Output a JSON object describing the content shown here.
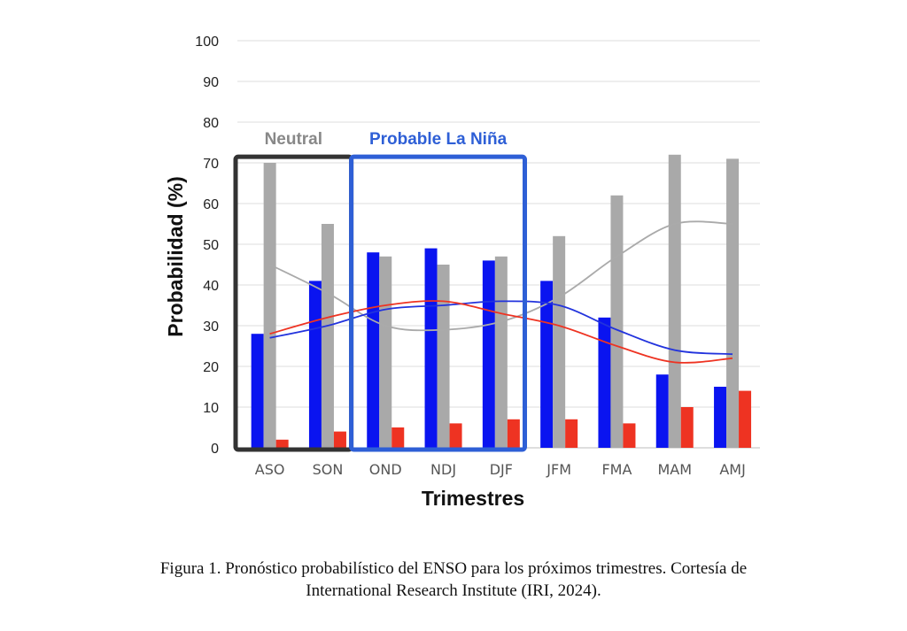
{
  "chart_data": {
    "type": "bar",
    "categories": [
      "ASO",
      "SON",
      "OND",
      "NDJ",
      "DJF",
      "JFM",
      "FMA",
      "MAM",
      "AMJ"
    ],
    "series": [
      {
        "color": "#0a14f0",
        "values": [
          28,
          41,
          48,
          49,
          46,
          41,
          32,
          18,
          15
        ]
      },
      {
        "color": "#a9a9a9",
        "values": [
          70,
          55,
          47,
          45,
          47,
          52,
          62,
          72,
          71
        ]
      },
      {
        "color": "#ee3322",
        "values": [
          2,
          4,
          5,
          6,
          7,
          7,
          6,
          10,
          14
        ]
      }
    ],
    "lines": [
      {
        "color": "#aaaaaa",
        "values": [
          45,
          38,
          30,
          29,
          31,
          37,
          47,
          55,
          55
        ]
      },
      {
        "color": "#2233dd",
        "values": [
          27,
          30,
          34,
          35,
          36,
          35,
          29,
          24,
          23
        ]
      },
      {
        "color": "#ee3322",
        "values": [
          28,
          32,
          35,
          36,
          33,
          30,
          25,
          21,
          22
        ]
      }
    ],
    "xlabel": "Trimestres",
    "ylabel": "Probabilidad (%)",
    "ylim": [
      0,
      100
    ],
    "yticks": [
      "0",
      "10",
      "20",
      "30",
      "40",
      "50",
      "60",
      "70",
      "80",
      "90",
      "100"
    ],
    "grid": true,
    "annotations": [
      {
        "text": "Neutral",
        "color": "#888888",
        "frame_color": "#333333",
        "categories": [
          "ASO",
          "SON"
        ]
      },
      {
        "text": "Probable La Niña",
        "color": "#2e5fd6",
        "frame_color": "#2e5fd6",
        "categories": [
          "OND",
          "NDJ",
          "DJF"
        ]
      }
    ]
  },
  "caption": {
    "line1": "Figura 1. Pronóstico probabilístico del ENSO para los próximos trimestres. Cortesía de",
    "line2": "International Research Institute (IRI, 2024)."
  }
}
